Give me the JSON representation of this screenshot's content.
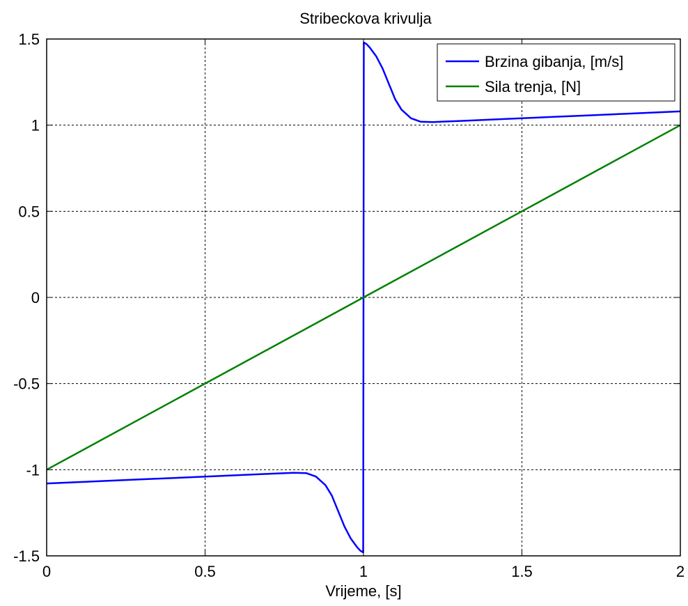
{
  "chart_data": {
    "type": "line",
    "title": "Stribeckova krivulja",
    "xlabel": "Vrijeme, [s]",
    "ylabel": "",
    "xlim": [
      0,
      2
    ],
    "ylim": [
      -1.5,
      1.5
    ],
    "xticks": [
      0,
      0.5,
      1,
      1.5,
      2
    ],
    "xtick_labels": [
      "0",
      "0.5",
      "1",
      "1.5",
      "2"
    ],
    "yticks": [
      -1.5,
      -1,
      -0.5,
      0,
      0.5,
      1,
      1.5
    ],
    "ytick_labels": [
      "-1.5",
      "-1",
      "-0.5",
      "0",
      "0.5",
      "1",
      "1.5"
    ],
    "grid": true,
    "legend_position": "top-right",
    "series": [
      {
        "name": "Brzina gibanja, [m/s]",
        "color": "#0000ff",
        "x": [
          0,
          0.1,
          0.2,
          0.3,
          0.4,
          0.5,
          0.6,
          0.7,
          0.78,
          0.82,
          0.85,
          0.88,
          0.9,
          0.92,
          0.94,
          0.96,
          0.98,
          0.99,
          0.999,
          1.001,
          1.01,
          1.02,
          1.04,
          1.06,
          1.08,
          1.1,
          1.12,
          1.15,
          1.18,
          1.22,
          1.3,
          1.4,
          1.5,
          1.6,
          1.7,
          1.8,
          1.9,
          2
        ],
        "values": [
          -1.08,
          -1.072,
          -1.064,
          -1.056,
          -1.048,
          -1.04,
          -1.032,
          -1.024,
          -1.018,
          -1.02,
          -1.04,
          -1.09,
          -1.15,
          -1.24,
          -1.33,
          -1.4,
          -1.45,
          -1.47,
          -1.48,
          1.48,
          1.47,
          1.45,
          1.4,
          1.33,
          1.24,
          1.15,
          1.09,
          1.04,
          1.02,
          1.018,
          1.024,
          1.032,
          1.04,
          1.048,
          1.056,
          1.064,
          1.072,
          1.08
        ]
      },
      {
        "name": "Sila trenja, [N]",
        "color": "#008000",
        "x": [
          0,
          2
        ],
        "values": [
          -1,
          1
        ]
      }
    ]
  }
}
